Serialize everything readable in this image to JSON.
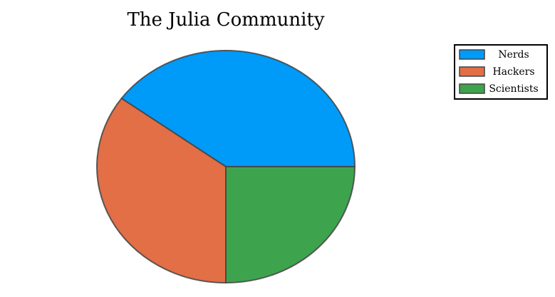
{
  "chart_data": {
    "type": "pie",
    "title": "The Julia Community",
    "start_angle_deg": 0,
    "direction": "counterclockwise",
    "legend_position": "top-right",
    "slices": [
      {
        "label": "Nerds",
        "value": 0.4,
        "color": "#009af9"
      },
      {
        "label": "Hackers",
        "value": 0.35,
        "color": "#e26f46"
      },
      {
        "label": "Scientists",
        "value": 0.25,
        "color": "#3da44d"
      }
    ]
  }
}
